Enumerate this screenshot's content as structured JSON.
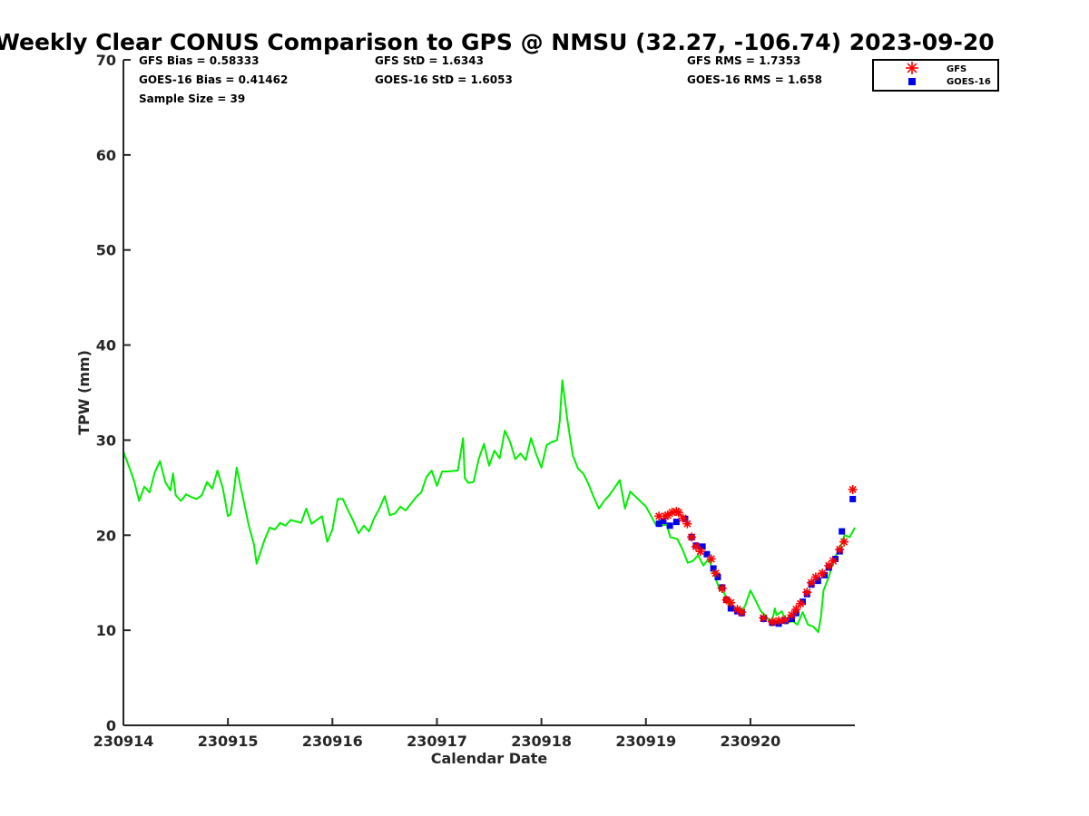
{
  "chart_data": {
    "type": "line",
    "title": "Weekly Clear CONUS Comparison to GPS @ NMSU (32.27, -106.74) 2023-09-20",
    "xlabel": "Calendar Date",
    "ylabel": "TPW (mm)",
    "xlim": [
      "2023-09-14T00:00",
      "2023-09-20T23:59"
    ],
    "ylim": [
      0,
      70
    ],
    "x_tick_labels": [
      "230914",
      "230915",
      "230916",
      "230917",
      "230918",
      "230919",
      "230920"
    ],
    "y_tick_labels": [
      "0",
      "10",
      "20",
      "30",
      "40",
      "50",
      "60",
      "70"
    ],
    "stats": [
      "GFS Bias = 0.58333",
      "GOES-16 Bias = 0.41462",
      "Sample Size = 39",
      "GFS StD = 1.6343",
      "GOES-16 StD = 1.6053",
      "GFS RMS = 1.7353",
      "GOES-16 RMS = 1.658"
    ],
    "legend": {
      "placement": "top-right",
      "entries": [
        "GFS",
        "GOES-16"
      ]
    },
    "colors": {
      "gps": "#00ee00",
      "gfs": "#ff0000",
      "goes": "#0000ee"
    },
    "series": [
      {
        "style": "line",
        "points": [
          [
            "2023-09-14T00:00",
            28.8
          ],
          [
            "2023-09-14T01:12",
            27.3
          ],
          [
            "2023-09-14T02:24",
            25.8
          ],
          [
            "2023-09-14T03:36",
            23.6
          ],
          [
            "2023-09-14T04:48",
            25.1
          ],
          [
            "2023-09-14T06:00",
            24.5
          ],
          [
            "2023-09-14T07:12",
            26.6
          ],
          [
            "2023-09-14T08:24",
            27.8
          ],
          [
            "2023-09-14T09:36",
            25.6
          ],
          [
            "2023-09-14T10:48",
            24.7
          ],
          [
            "2023-09-14T11:24",
            26.5
          ],
          [
            "2023-09-14T12:00",
            24.2
          ],
          [
            "2023-09-14T13:12",
            23.6
          ],
          [
            "2023-09-14T14:24",
            24.3
          ],
          [
            "2023-09-14T15:36",
            24.0
          ],
          [
            "2023-09-14T16:48",
            23.8
          ],
          [
            "2023-09-14T18:00",
            24.2
          ],
          [
            "2023-09-14T19:12",
            25.6
          ],
          [
            "2023-09-14T20:24",
            24.9
          ],
          [
            "2023-09-14T21:36",
            26.8
          ],
          [
            "2023-09-14T22:48",
            25.0
          ],
          [
            "2023-09-15T00:00",
            22.0
          ],
          [
            "2023-09-15T00:36",
            22.2
          ],
          [
            "2023-09-15T01:12",
            24.0
          ],
          [
            "2023-09-15T02:00",
            27.1
          ],
          [
            "2023-09-15T03:12",
            24.5
          ],
          [
            "2023-09-15T04:48",
            21.0
          ],
          [
            "2023-09-15T06:00",
            19.0
          ],
          [
            "2023-09-15T06:36",
            17.0
          ],
          [
            "2023-09-15T08:24",
            19.5
          ],
          [
            "2023-09-15T09:36",
            20.8
          ],
          [
            "2023-09-15T10:48",
            20.6
          ],
          [
            "2023-09-15T12:00",
            21.3
          ],
          [
            "2023-09-15T13:12",
            21.0
          ],
          [
            "2023-09-15T14:24",
            21.6
          ],
          [
            "2023-09-15T16:48",
            21.3
          ],
          [
            "2023-09-15T18:00",
            22.8
          ],
          [
            "2023-09-15T19:12",
            21.2
          ],
          [
            "2023-09-15T21:36",
            22.0
          ],
          [
            "2023-09-15T22:48",
            19.3
          ],
          [
            "2023-09-16T00:00",
            20.6
          ],
          [
            "2023-09-16T01:12",
            23.8
          ],
          [
            "2023-09-16T02:24",
            23.8
          ],
          [
            "2023-09-16T03:36",
            22.6
          ],
          [
            "2023-09-16T04:48",
            21.5
          ],
          [
            "2023-09-16T06:00",
            20.2
          ],
          [
            "2023-09-16T07:12",
            21.0
          ],
          [
            "2023-09-16T08:24",
            20.4
          ],
          [
            "2023-09-16T09:36",
            21.8
          ],
          [
            "2023-09-16T10:48",
            22.8
          ],
          [
            "2023-09-16T12:00",
            24.1
          ],
          [
            "2023-09-16T13:12",
            22.1
          ],
          [
            "2023-09-16T14:24",
            22.3
          ],
          [
            "2023-09-16T15:36",
            23.0
          ],
          [
            "2023-09-16T16:48",
            22.6
          ],
          [
            "2023-09-16T18:00",
            23.3
          ],
          [
            "2023-09-16T19:12",
            24.0
          ],
          [
            "2023-09-16T20:24",
            24.5
          ],
          [
            "2023-09-16T21:36",
            26.1
          ],
          [
            "2023-09-16T22:48",
            26.8
          ],
          [
            "2023-09-17T00:00",
            25.2
          ],
          [
            "2023-09-17T01:12",
            26.7
          ],
          [
            "2023-09-17T02:24",
            26.7
          ],
          [
            "2023-09-17T04:48",
            26.8
          ],
          [
            "2023-09-17T06:00",
            30.2
          ],
          [
            "2023-09-17T06:24",
            26.0
          ],
          [
            "2023-09-17T07:12",
            25.5
          ],
          [
            "2023-09-17T08:24",
            25.6
          ],
          [
            "2023-09-17T09:36",
            28.0
          ],
          [
            "2023-09-17T10:48",
            29.6
          ],
          [
            "2023-09-17T12:00",
            27.3
          ],
          [
            "2023-09-17T13:12",
            28.9
          ],
          [
            "2023-09-17T14:24",
            28.1
          ],
          [
            "2023-09-17T15:36",
            31.0
          ],
          [
            "2023-09-17T16:48",
            29.8
          ],
          [
            "2023-09-17T18:00",
            28.0
          ],
          [
            "2023-09-17T19:12",
            28.6
          ],
          [
            "2023-09-17T20:24",
            27.9
          ],
          [
            "2023-09-17T21:36",
            30.2
          ],
          [
            "2023-09-17T22:48",
            28.5
          ],
          [
            "2023-09-18T00:00",
            27.1
          ],
          [
            "2023-09-18T01:12",
            29.5
          ],
          [
            "2023-09-18T02:24",
            29.8
          ],
          [
            "2023-09-18T03:36",
            30.0
          ],
          [
            "2023-09-18T04:12",
            32.0
          ],
          [
            "2023-09-18T04:48",
            36.3
          ],
          [
            "2023-09-18T06:00",
            32.0
          ],
          [
            "2023-09-18T07:12",
            28.4
          ],
          [
            "2023-09-18T08:24",
            27.0
          ],
          [
            "2023-09-18T09:36",
            26.5
          ],
          [
            "2023-09-18T10:48",
            25.4
          ],
          [
            "2023-09-18T12:00",
            24.0
          ],
          [
            "2023-09-18T13:12",
            22.8
          ],
          [
            "2023-09-18T14:24",
            23.6
          ],
          [
            "2023-09-18T15:36",
            24.2
          ],
          [
            "2023-09-18T16:48",
            25.0
          ],
          [
            "2023-09-18T18:00",
            25.8
          ],
          [
            "2023-09-18T19:12",
            22.8
          ],
          [
            "2023-09-18T20:24",
            24.6
          ],
          [
            "2023-09-19T00:00",
            23.0
          ],
          [
            "2023-09-19T02:24",
            21.0
          ],
          [
            "2023-09-19T04:48",
            21.1
          ],
          [
            "2023-09-19T05:36",
            19.8
          ],
          [
            "2023-09-19T07:12",
            19.6
          ],
          [
            "2023-09-19T08:24",
            18.5
          ],
          [
            "2023-09-19T09:36",
            17.1
          ],
          [
            "2023-09-19T10:48",
            17.3
          ],
          [
            "2023-09-19T12:00",
            17.9
          ],
          [
            "2023-09-19T13:12",
            16.8
          ],
          [
            "2023-09-19T14:24",
            17.5
          ],
          [
            "2023-09-19T15:36",
            16.0
          ],
          [
            "2023-09-19T16:48",
            14.4
          ],
          [
            "2023-09-19T18:00",
            13.9
          ],
          [
            "2023-09-19T19:12",
            12.6
          ],
          [
            "2023-09-19T20:24",
            12.2
          ],
          [
            "2023-09-19T21:36",
            11.8
          ],
          [
            "2023-09-19T22:48",
            12.6
          ],
          [
            "2023-09-20T00:00",
            14.2
          ],
          [
            "2023-09-20T01:12",
            13.1
          ],
          [
            "2023-09-20T02:24",
            12.0
          ],
          [
            "2023-09-20T03:36",
            11.5
          ],
          [
            "2023-09-20T04:48",
            10.5
          ],
          [
            "2023-09-20T05:36",
            12.3
          ],
          [
            "2023-09-20T06:00",
            11.6
          ],
          [
            "2023-09-20T07:12",
            12.0
          ],
          [
            "2023-09-20T08:24",
            10.7
          ],
          [
            "2023-09-20T09:36",
            11.0
          ],
          [
            "2023-09-20T10:48",
            10.6
          ],
          [
            "2023-09-20T12:00",
            11.9
          ],
          [
            "2023-09-20T13:12",
            10.6
          ],
          [
            "2023-09-20T14:24",
            10.4
          ],
          [
            "2023-09-20T15:36",
            9.8
          ],
          [
            "2023-09-20T16:12",
            11.5
          ],
          [
            "2023-09-20T16:48",
            14.2
          ],
          [
            "2023-09-20T18:00",
            15.6
          ],
          [
            "2023-09-20T19:12",
            17.6
          ],
          [
            "2023-09-20T20:24",
            18.4
          ],
          [
            "2023-09-20T21:36",
            20.0
          ],
          [
            "2023-09-20T22:48",
            19.8
          ],
          [
            "2023-09-20T23:59",
            20.8
          ]
        ]
      },
      {
        "name": "GFS",
        "style": "star-marker",
        "points": [
          [
            "2023-09-19T03:00",
            22.0
          ],
          [
            "2023-09-19T04:30",
            22.0
          ],
          [
            "2023-09-19T05:00",
            22.1
          ],
          [
            "2023-09-19T06:00",
            22.4
          ],
          [
            "2023-09-19T07:00",
            22.5
          ],
          [
            "2023-09-19T07:30",
            22.4
          ],
          [
            "2023-09-19T08:30",
            21.8
          ],
          [
            "2023-09-19T09:30",
            21.2
          ],
          [
            "2023-09-19T10:30",
            19.8
          ],
          [
            "2023-09-19T11:30",
            18.8
          ],
          [
            "2023-09-19T12:30",
            18.3
          ],
          [
            "2023-09-19T15:00",
            17.5
          ],
          [
            "2023-09-19T16:00",
            16.0
          ],
          [
            "2023-09-19T17:30",
            14.4
          ],
          [
            "2023-09-19T18:30",
            13.2
          ],
          [
            "2023-09-19T19:30",
            12.9
          ],
          [
            "2023-09-19T21:00",
            12.2
          ],
          [
            "2023-09-19T22:00",
            11.9
          ],
          [
            "2023-09-20T03:00",
            11.3
          ],
          [
            "2023-09-20T05:00",
            10.9
          ],
          [
            "2023-09-20T06:30",
            11.0
          ],
          [
            "2023-09-20T08:00",
            11.1
          ],
          [
            "2023-09-20T09:30",
            11.6
          ],
          [
            "2023-09-20T10:30",
            12.2
          ],
          [
            "2023-09-20T11:30",
            12.8
          ],
          [
            "2023-09-20T13:00",
            14.0
          ],
          [
            "2023-09-20T14:00",
            15.0
          ],
          [
            "2023-09-20T15:00",
            15.6
          ],
          [
            "2023-09-20T16:30",
            16.0
          ],
          [
            "2023-09-20T18:00",
            16.8
          ],
          [
            "2023-09-20T19:00",
            17.3
          ],
          [
            "2023-09-20T20:30",
            18.5
          ],
          [
            "2023-09-20T21:30",
            19.3
          ],
          [
            "2023-09-20T23:30",
            24.8
          ]
        ]
      },
      {
        "name": "GOES-16",
        "style": "square-marker",
        "points": [
          [
            "2023-09-19T03:00",
            21.2
          ],
          [
            "2023-09-19T04:00",
            21.5
          ],
          [
            "2023-09-19T05:30",
            21.0
          ],
          [
            "2023-09-19T07:00",
            21.4
          ],
          [
            "2023-09-19T09:00",
            21.7
          ],
          [
            "2023-09-19T10:30",
            19.8
          ],
          [
            "2023-09-19T11:30",
            18.9
          ],
          [
            "2023-09-19T13:00",
            18.8
          ],
          [
            "2023-09-19T14:00",
            18.0
          ],
          [
            "2023-09-19T15:30",
            16.5
          ],
          [
            "2023-09-19T16:30",
            15.6
          ],
          [
            "2023-09-19T17:30",
            14.5
          ],
          [
            "2023-09-19T18:30",
            13.2
          ],
          [
            "2023-09-19T19:30",
            12.3
          ],
          [
            "2023-09-19T21:00",
            12.0
          ],
          [
            "2023-09-19T22:00",
            11.8
          ],
          [
            "2023-09-20T03:00",
            11.2
          ],
          [
            "2023-09-20T05:00",
            10.8
          ],
          [
            "2023-09-20T06:30",
            10.7
          ],
          [
            "2023-09-20T08:00",
            11.0
          ],
          [
            "2023-09-20T09:30",
            11.2
          ],
          [
            "2023-09-20T10:30",
            11.8
          ],
          [
            "2023-09-20T12:00",
            13.0
          ],
          [
            "2023-09-20T13:00",
            13.8
          ],
          [
            "2023-09-20T14:00",
            14.8
          ],
          [
            "2023-09-20T15:30",
            15.2
          ],
          [
            "2023-09-20T17:00",
            15.8
          ],
          [
            "2023-09-20T18:00",
            16.6
          ],
          [
            "2023-09-20T19:30",
            17.5
          ],
          [
            "2023-09-20T20:30",
            18.3
          ],
          [
            "2023-09-20T21:00",
            20.4
          ],
          [
            "2023-09-20T23:30",
            23.8
          ]
        ]
      }
    ]
  }
}
